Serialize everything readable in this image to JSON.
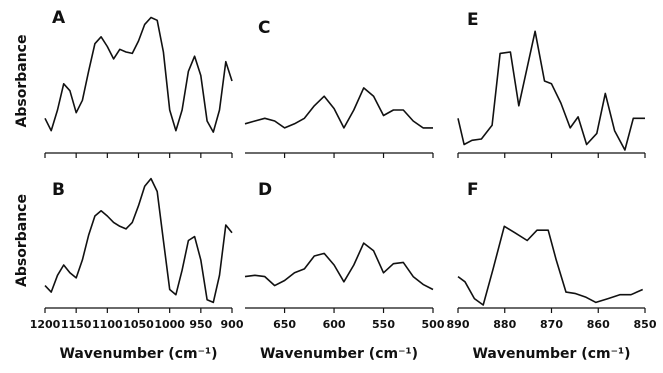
{
  "chart_data": [
    {
      "type": "line",
      "title": "A",
      "y_label": "Absorbance",
      "color": "#111111",
      "x": [
        1200,
        1190,
        1180,
        1170,
        1160,
        1150,
        1140,
        1130,
        1120,
        1110,
        1100,
        1090,
        1080,
        1070,
        1060,
        1050,
        1040,
        1030,
        1020,
        1010,
        1000,
        990,
        980,
        970,
        960,
        950,
        940,
        930,
        920,
        910,
        900
      ],
      "values": [
        23,
        14,
        29,
        48,
        43,
        27,
        36,
        57,
        77,
        82,
        75,
        66,
        73,
        71,
        70,
        79,
        91,
        96,
        94,
        71,
        29,
        14,
        29,
        57,
        68,
        54,
        21,
        13,
        29,
        64,
        50
      ],
      "xlim": [
        1200,
        900
      ],
      "ylim": [
        0,
        100
      ],
      "xticks": [
        1200,
        1150,
        1100,
        1050,
        1000,
        950,
        900
      ],
      "show_tick_labels": false
    },
    {
      "type": "line",
      "title": "B",
      "y_label": "Absorbance",
      "x_label": "Wavenumber (cm⁻¹)",
      "color": "#111111",
      "x": [
        1200,
        1190,
        1180,
        1170,
        1160,
        1150,
        1140,
        1130,
        1120,
        1110,
        1100,
        1090,
        1080,
        1070,
        1060,
        1050,
        1040,
        1030,
        1020,
        1010,
        1000,
        990,
        980,
        970,
        960,
        950,
        940,
        930,
        920,
        910,
        900
      ],
      "values": [
        15,
        10,
        23,
        31,
        25,
        21,
        35,
        54,
        69,
        73,
        69,
        64,
        61,
        59,
        64,
        77,
        92,
        98,
        88,
        50,
        12,
        8,
        27,
        50,
        53,
        35,
        4,
        2,
        23,
        62,
        56
      ],
      "xlim": [
        1200,
        900
      ],
      "ylim": [
        0,
        100
      ],
      "xticks": [
        1200,
        1150,
        1100,
        1050,
        1000,
        950,
        900
      ],
      "show_tick_labels": true
    },
    {
      "type": "line",
      "title": "C",
      "color": "#111111",
      "x": [
        690,
        680,
        670,
        660,
        650,
        640,
        630,
        620,
        610,
        600,
        590,
        580,
        570,
        560,
        550,
        540,
        530,
        520,
        510,
        500
      ],
      "values": [
        19,
        21,
        23,
        21,
        16,
        19,
        23,
        32,
        39,
        30,
        16,
        29,
        45,
        39,
        25,
        29,
        29,
        21,
        16,
        16
      ],
      "xlim": [
        690,
        500
      ],
      "ylim": [
        0,
        100
      ],
      "xticks": [
        650,
        600,
        550,
        500
      ],
      "show_tick_labels": false
    },
    {
      "type": "line",
      "title": "D",
      "x_label": "Wavenumber (cm⁻¹)",
      "color": "#111111",
      "x": [
        690,
        680,
        670,
        660,
        650,
        640,
        630,
        620,
        610,
        600,
        590,
        580,
        570,
        560,
        550,
        540,
        530,
        520,
        510,
        500
      ],
      "values": [
        22,
        23,
        22,
        15,
        19,
        25,
        28,
        38,
        40,
        31,
        18,
        31,
        48,
        42,
        25,
        32,
        33,
        22,
        16,
        12
      ],
      "xlim": [
        690,
        500
      ],
      "ylim": [
        0,
        100
      ],
      "xticks": [
        650,
        600,
        550,
        500
      ],
      "show_tick_labels": true
    },
    {
      "type": "line",
      "title": "E",
      "color": "#111111",
      "x": [
        890,
        888.7,
        887,
        885,
        882.7,
        881,
        878.8,
        877,
        873.5,
        871.5,
        870,
        868,
        866,
        864.3,
        862.5,
        860.3,
        858.5,
        856.5,
        854.3,
        852.5,
        850
      ],
      "values": [
        23,
        4,
        7,
        8,
        18,
        70,
        71,
        32,
        86,
        50,
        48,
        34,
        16,
        24,
        4,
        12,
        41,
        14,
        0,
        23,
        23
      ],
      "xlim": [
        890,
        850
      ],
      "ylim": [
        0,
        100
      ],
      "xticks": [
        890,
        880,
        870,
        860,
        850
      ],
      "show_tick_labels": false
    },
    {
      "type": "line",
      "title": "F",
      "x_label": "Wavenumber (cm⁻¹)",
      "color": "#111111",
      "x": [
        890,
        888.5,
        886.5,
        884.6,
        882.5,
        880.1,
        877.8,
        875.2,
        873.1,
        870.7,
        869,
        866.9,
        865,
        862.6,
        860.5,
        857.9,
        855.4,
        853,
        850.5
      ],
      "values": [
        22,
        18,
        5,
        0,
        28,
        61,
        56,
        50,
        58,
        58,
        35,
        10,
        9,
        6,
        2,
        5,
        8,
        8,
        12
      ],
      "xlim": [
        890,
        850
      ],
      "ylim": [
        0,
        100
      ],
      "xticks": [
        890,
        880,
        870,
        860,
        850
      ],
      "show_tick_labels": true
    }
  ]
}
